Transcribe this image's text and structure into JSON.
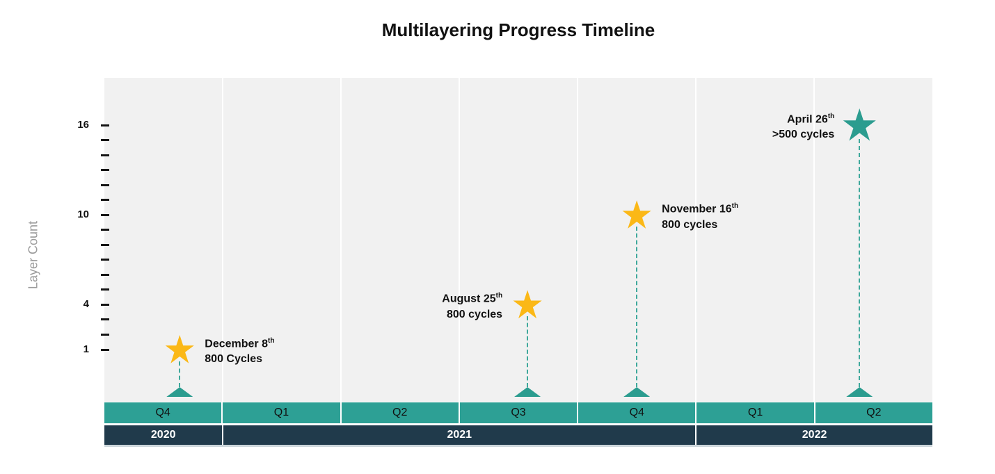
{
  "chart_data": {
    "type": "scatter",
    "title": "Multilayering Progress Timeline",
    "ylabel": "Layer Count",
    "y_axis": {
      "min": 1,
      "max": 16,
      "tick_interval": 1,
      "labeled_ticks": [
        16,
        10,
        4,
        1
      ]
    },
    "x_axis": {
      "quarter_labels": [
        "Q4",
        "Q1",
        "Q2",
        "Q3",
        "Q4",
        "Q1",
        "Q2"
      ],
      "year_groups": [
        {
          "label": "2020",
          "quarter_span": 1
        },
        {
          "label": "2021",
          "quarter_span": 4
        },
        {
          "label": "2022",
          "quarter_span": 2
        }
      ]
    },
    "events": [
      {
        "date": "December 8",
        "date_suffix": "th",
        "cycles": "800 Cycles",
        "layer_count": 1,
        "quarter": "Q4 2020",
        "x_frac": 0.091,
        "label_side": "right",
        "marker": "star",
        "marker_color": "#FBB817",
        "marker_size": 42
      },
      {
        "date": "August 25",
        "date_suffix": "th",
        "cycles": "800 cycles",
        "layer_count": 4,
        "quarter": "Q3 2021",
        "x_frac": 0.511,
        "label_side": "left",
        "marker": "star",
        "marker_color": "#FBB817",
        "marker_size": 42
      },
      {
        "date": "November 16",
        "date_suffix": "th",
        "cycles": "800 cycles",
        "layer_count": 10,
        "quarter": "Q4 2021",
        "x_frac": 0.643,
        "label_side": "right",
        "marker": "star",
        "marker_color": "#FBB817",
        "marker_size": 42
      },
      {
        "date": "April 26",
        "date_suffix": "th",
        "cycles": ">500 cycles",
        "layer_count": 16,
        "quarter": "Q2 2022",
        "x_frac": 0.912,
        "label_side": "left",
        "marker": "star",
        "marker_color": "#2B9C8F",
        "marker_size": 48
      }
    ],
    "layout_hints": {
      "legend": "none",
      "grid": "vertical-lines-at-quarter-boundaries",
      "ylim": [
        1,
        16
      ]
    },
    "colors": {
      "plot_background": "#F1F1F1",
      "gridline": "#FFFFFF",
      "quarter_bar": "#2DA095",
      "year_bar": "#203A4B",
      "quarter_text": "#111111",
      "year_text": "#FFFFFF",
      "star_yellow": "#FBB817",
      "star_teal": "#2B9C8F",
      "connector": "#3FA99C",
      "baseline_triangle": "#2B9C8F",
      "tick_color": "#141414",
      "axis_text": "#111111",
      "y_title_text": "#9B9B9B",
      "title_text": "#111111"
    }
  }
}
